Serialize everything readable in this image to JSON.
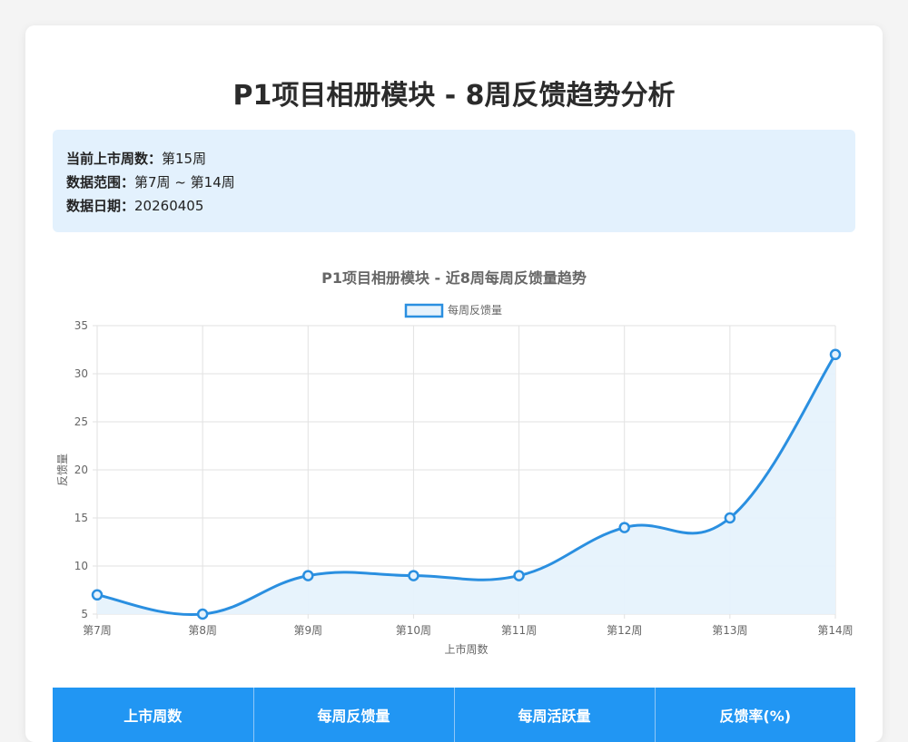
{
  "page": {
    "title": "P1项目相册模块 - 8周反馈趋势分析"
  },
  "info": {
    "rows": [
      {
        "key": "当前上市周数：",
        "value": "第15周"
      },
      {
        "key": "数据范围：",
        "value": "第7周 ~ 第14周"
      },
      {
        "key": "数据日期：",
        "value": "20260405"
      }
    ]
  },
  "chart_data": {
    "type": "line",
    "title": "P1项目相册模块 - 近8周每周反馈量趋势",
    "xlabel": "上市周数",
    "ylabel": "反馈量",
    "categories": [
      "第7周",
      "第8周",
      "第9周",
      "第10周",
      "第11周",
      "第12周",
      "第13周",
      "第14周"
    ],
    "series": [
      {
        "name": "每周反馈量",
        "values": [
          7,
          5,
          9,
          9,
          9,
          14,
          15,
          32
        ],
        "color": "#2a8fe0",
        "fill": "#e6f2fc"
      }
    ],
    "ylim": [
      5,
      35
    ],
    "yticks": [
      5,
      10,
      15,
      20,
      25,
      30,
      35
    ],
    "grid": true,
    "legend": "top-center",
    "area_fill": true,
    "smooth": true
  },
  "table": {
    "headers": [
      "上市周数",
      "每周反馈量",
      "每周活跃量",
      "反馈率(%)"
    ]
  }
}
